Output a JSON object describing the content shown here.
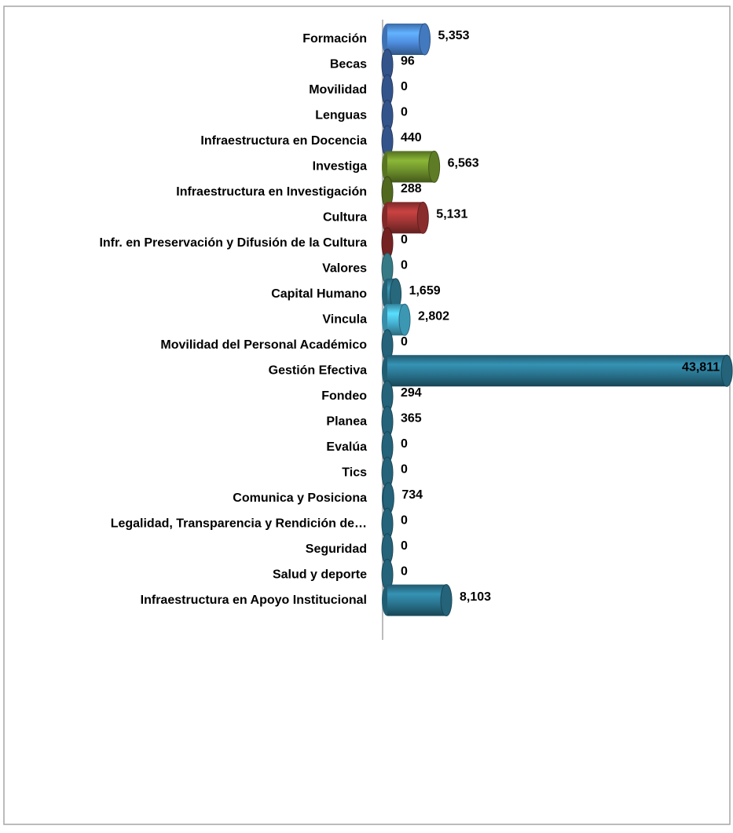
{
  "chart_data": {
    "type": "bar",
    "orientation": "horizontal",
    "categories": [
      "Formación",
      "Becas",
      "Movilidad",
      "Lenguas",
      "Infraestructura en Docencia",
      "Investiga",
      "Infraestructura en Investigación",
      "Cultura",
      "Infr. en Preservación y Difusión de la Cultura",
      "Valores",
      "Capital Humano",
      "Vincula",
      "Movilidad del Personal Académico",
      "Gestión Efectiva",
      "Fondeo",
      "Planea",
      "Evalúa",
      "Tics",
      "Comunica y Posiciona",
      "Legalidad, Transparencia y Rendición de…",
      "Seguridad",
      "Salud y deporte",
      "Infraestructura en Apoyo Institucional"
    ],
    "values": [
      5353,
      96,
      0,
      0,
      440,
      6563,
      288,
      5131,
      0,
      0,
      1659,
      2802,
      0,
      43811,
      294,
      365,
      0,
      0,
      734,
      0,
      0,
      0,
      8103
    ],
    "value_labels": [
      "5,353",
      "96",
      "0",
      "0",
      "440",
      "6,563",
      "288",
      "5,131",
      "0",
      "0",
      "1,659",
      "2,802",
      "0",
      "43,811",
      "294",
      "365",
      "0",
      "0",
      "734",
      "0",
      "0",
      "0",
      "8,103"
    ],
    "colors": [
      "#4f8ee0",
      "#3c62a3",
      "#3c62a3",
      "#3c62a3",
      "#3c62a3",
      "#6f922c",
      "#5f7a25",
      "#a23535",
      "#8a2828",
      "#3f8f9c",
      "#2e7a93",
      "#47b2d3",
      "#2a7590",
      "#2a7590",
      "#2a7590",
      "#2a7590",
      "#2a7590",
      "#2a7590",
      "#2a7590",
      "#2a7590",
      "#2a7590",
      "#2a7590",
      "#2a7590"
    ],
    "xlim": [
      0,
      44000
    ]
  }
}
